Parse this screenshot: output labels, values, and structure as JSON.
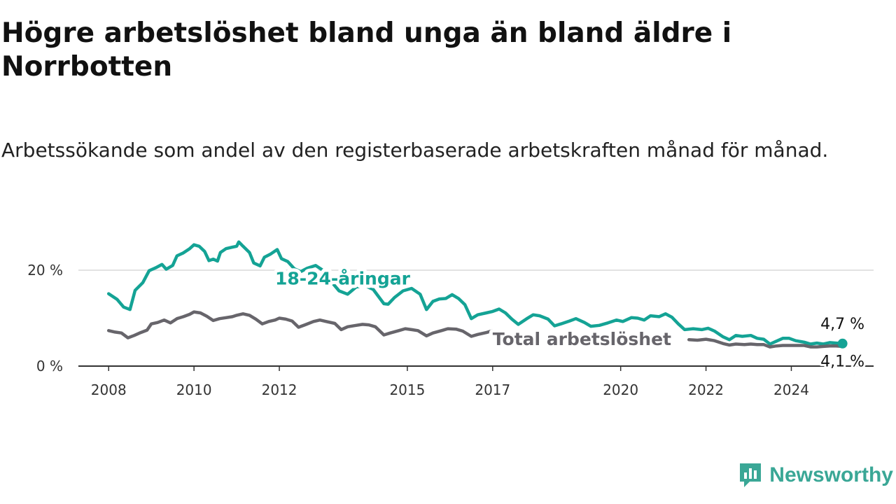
{
  "title": "Högre arbetslöshet bland unga än bland äldre i Norrbotten",
  "subtitle": "Arbetssökande som andel av den registerbaserade arbetskraften månad för månad.",
  "brand": {
    "name": "Newsworthy",
    "color": "#3aa796"
  },
  "chart_data": {
    "type": "line",
    "title": "Högre arbetslöshet bland unga än bland äldre i Norrbotten",
    "subtitle": "Arbetssökande som andel av den registerbaserade arbetskraften månad för månad.",
    "x_unit": "year",
    "xlim": [
      2007.75,
      2025.6
    ],
    "ylim": [
      0,
      30
    ],
    "y_ticks": [
      {
        "value": 0,
        "label": "0 %"
      },
      {
        "value": 20,
        "label": "20 %"
      }
    ],
    "x_ticks": [
      {
        "value": 2008,
        "label": "2008"
      },
      {
        "value": 2010,
        "label": "2010"
      },
      {
        "value": 2012,
        "label": "2012"
      },
      {
        "value": 2015,
        "label": "2015"
      },
      {
        "value": 2017,
        "label": "2017"
      },
      {
        "value": 2020,
        "label": "2020"
      },
      {
        "value": 2022,
        "label": "2022"
      },
      {
        "value": 2024,
        "label": "2024"
      }
    ],
    "grid": "horizontal",
    "series": [
      {
        "name": "18-24-åringar",
        "color": "#14a395",
        "label_pos": [
          2011.9,
          18.3
        ],
        "end_label": "4,7 %",
        "points": [
          [
            2008.0,
            15.1
          ],
          [
            2008.2,
            13.9
          ],
          [
            2008.35,
            12.3
          ],
          [
            2008.5,
            11.8
          ],
          [
            2008.62,
            15.8
          ],
          [
            2008.8,
            17.4
          ],
          [
            2008.95,
            19.9
          ],
          [
            2009.1,
            20.5
          ],
          [
            2009.25,
            21.2
          ],
          [
            2009.35,
            20.2
          ],
          [
            2009.5,
            21.0
          ],
          [
            2009.6,
            23.0
          ],
          [
            2009.75,
            23.6
          ],
          [
            2009.9,
            24.5
          ],
          [
            2010.0,
            25.3
          ],
          [
            2010.12,
            25.0
          ],
          [
            2010.25,
            23.9
          ],
          [
            2010.35,
            22.0
          ],
          [
            2010.45,
            22.3
          ],
          [
            2010.55,
            21.9
          ],
          [
            2010.62,
            23.7
          ],
          [
            2010.75,
            24.5
          ],
          [
            2010.9,
            24.8
          ],
          [
            2011.0,
            25.0
          ],
          [
            2011.05,
            25.9
          ],
          [
            2011.15,
            25.0
          ],
          [
            2011.3,
            23.7
          ],
          [
            2011.4,
            21.5
          ],
          [
            2011.55,
            20.9
          ],
          [
            2011.65,
            22.7
          ],
          [
            2011.8,
            23.4
          ],
          [
            2011.95,
            24.3
          ],
          [
            2012.05,
            22.4
          ],
          [
            2012.2,
            21.8
          ],
          [
            2012.35,
            20.3
          ],
          [
            2012.5,
            19.7
          ],
          [
            2012.65,
            20.4
          ],
          [
            2012.85,
            21.0
          ],
          [
            2013.0,
            20.1
          ],
          [
            2013.2,
            17.8
          ],
          [
            2013.4,
            15.7
          ],
          [
            2013.6,
            15.0
          ],
          [
            2013.8,
            16.5
          ],
          [
            2014.0,
            16.8
          ],
          [
            2014.2,
            16.0
          ],
          [
            2014.45,
            13.0
          ],
          [
            2014.55,
            12.9
          ],
          [
            2014.7,
            14.3
          ],
          [
            2014.9,
            15.7
          ],
          [
            2015.1,
            16.2
          ],
          [
            2015.3,
            15.0
          ],
          [
            2015.45,
            11.8
          ],
          [
            2015.6,
            13.5
          ],
          [
            2015.75,
            14.0
          ],
          [
            2015.9,
            14.1
          ],
          [
            2016.05,
            14.9
          ],
          [
            2016.2,
            14.1
          ],
          [
            2016.35,
            12.8
          ],
          [
            2016.5,
            9.9
          ],
          [
            2016.65,
            10.7
          ],
          [
            2016.85,
            11.1
          ],
          [
            2017.0,
            11.4
          ],
          [
            2017.15,
            11.9
          ],
          [
            2017.3,
            11.1
          ],
          [
            2017.45,
            9.8
          ],
          [
            2017.6,
            8.7
          ],
          [
            2017.8,
            9.9
          ],
          [
            2017.95,
            10.7
          ],
          [
            2018.1,
            10.5
          ],
          [
            2018.3,
            9.8
          ],
          [
            2018.45,
            8.4
          ],
          [
            2018.6,
            8.8
          ],
          [
            2018.8,
            9.4
          ],
          [
            2018.95,
            9.9
          ],
          [
            2019.15,
            9.1
          ],
          [
            2019.3,
            8.3
          ],
          [
            2019.5,
            8.5
          ],
          [
            2019.7,
            9.0
          ],
          [
            2019.9,
            9.6
          ],
          [
            2020.05,
            9.3
          ],
          [
            2020.25,
            10.1
          ],
          [
            2020.4,
            10.0
          ],
          [
            2020.55,
            9.6
          ],
          [
            2020.7,
            10.5
          ],
          [
            2020.9,
            10.3
          ],
          [
            2021.05,
            10.9
          ],
          [
            2021.2,
            10.2
          ],
          [
            2021.35,
            8.8
          ],
          [
            2021.5,
            7.6
          ],
          [
            2021.7,
            7.8
          ],
          [
            2021.9,
            7.6
          ],
          [
            2022.05,
            7.9
          ],
          [
            2022.2,
            7.3
          ],
          [
            2022.4,
            6.1
          ],
          [
            2022.55,
            5.5
          ],
          [
            2022.7,
            6.4
          ],
          [
            2022.85,
            6.2
          ],
          [
            2023.05,
            6.4
          ],
          [
            2023.2,
            5.8
          ],
          [
            2023.35,
            5.6
          ],
          [
            2023.5,
            4.6
          ],
          [
            2023.65,
            5.2
          ],
          [
            2023.8,
            5.8
          ],
          [
            2023.95,
            5.8
          ],
          [
            2024.1,
            5.3
          ],
          [
            2024.3,
            5.0
          ],
          [
            2024.45,
            4.6
          ],
          [
            2024.6,
            4.8
          ],
          [
            2024.75,
            4.6
          ],
          [
            2024.9,
            4.9
          ],
          [
            2025.05,
            4.8
          ],
          [
            2025.2,
            4.7
          ]
        ]
      },
      {
        "name": "Total arbetslöshet",
        "color": "#67656b",
        "label_pos": [
          2017.0,
          5.7
        ],
        "end_label": "4,1 %",
        "points": [
          [
            2008.0,
            7.4
          ],
          [
            2008.15,
            7.1
          ],
          [
            2008.3,
            6.9
          ],
          [
            2008.45,
            5.9
          ],
          [
            2008.6,
            6.4
          ],
          [
            2008.75,
            7.0
          ],
          [
            2008.9,
            7.5
          ],
          [
            2009.0,
            8.8
          ],
          [
            2009.15,
            9.1
          ],
          [
            2009.3,
            9.6
          ],
          [
            2009.45,
            9.0
          ],
          [
            2009.6,
            9.9
          ],
          [
            2009.75,
            10.3
          ],
          [
            2009.9,
            10.8
          ],
          [
            2010.0,
            11.3
          ],
          [
            2010.15,
            11.1
          ],
          [
            2010.3,
            10.4
          ],
          [
            2010.45,
            9.5
          ],
          [
            2010.6,
            9.9
          ],
          [
            2010.75,
            10.1
          ],
          [
            2010.9,
            10.3
          ],
          [
            2011.0,
            10.6
          ],
          [
            2011.15,
            10.9
          ],
          [
            2011.3,
            10.6
          ],
          [
            2011.45,
            9.8
          ],
          [
            2011.6,
            8.8
          ],
          [
            2011.75,
            9.3
          ],
          [
            2011.9,
            9.6
          ],
          [
            2012.0,
            10.0
          ],
          [
            2012.15,
            9.8
          ],
          [
            2012.3,
            9.4
          ],
          [
            2012.45,
            8.1
          ],
          [
            2012.6,
            8.6
          ],
          [
            2012.8,
            9.3
          ],
          [
            2012.95,
            9.6
          ],
          [
            2013.1,
            9.3
          ],
          [
            2013.3,
            8.9
          ],
          [
            2013.45,
            7.6
          ],
          [
            2013.6,
            8.2
          ],
          [
            2013.8,
            8.5
          ],
          [
            2013.95,
            8.7
          ],
          [
            2014.1,
            8.6
          ],
          [
            2014.25,
            8.2
          ],
          [
            2014.45,
            6.5
          ],
          [
            2014.6,
            6.9
          ],
          [
            2014.8,
            7.4
          ],
          [
            2014.95,
            7.8
          ],
          [
            2015.1,
            7.6
          ],
          [
            2015.25,
            7.4
          ],
          [
            2015.45,
            6.3
          ],
          [
            2015.6,
            6.9
          ],
          [
            2015.8,
            7.4
          ],
          [
            2015.95,
            7.8
          ],
          [
            2016.15,
            7.7
          ],
          [
            2016.3,
            7.3
          ],
          [
            2016.5,
            6.2
          ],
          [
            2016.65,
            6.6
          ],
          [
            2016.85,
            7.0
          ],
          [
            2017.0,
            7.4
          ]
        ]
      },
      {
        "name": "Total arbetslöshet (slut)",
        "color": "#67656b",
        "points": [
          [
            2021.6,
            5.5
          ],
          [
            2021.8,
            5.4
          ],
          [
            2022.0,
            5.6
          ],
          [
            2022.2,
            5.3
          ],
          [
            2022.4,
            4.7
          ],
          [
            2022.55,
            4.4
          ],
          [
            2022.7,
            4.6
          ],
          [
            2022.9,
            4.5
          ],
          [
            2023.05,
            4.6
          ],
          [
            2023.2,
            4.5
          ],
          [
            2023.35,
            4.5
          ],
          [
            2023.5,
            4.0
          ],
          [
            2023.65,
            4.2
          ],
          [
            2023.8,
            4.3
          ],
          [
            2024.0,
            4.3
          ],
          [
            2024.15,
            4.3
          ],
          [
            2024.3,
            4.3
          ],
          [
            2024.45,
            4.0
          ],
          [
            2024.6,
            4.0
          ],
          [
            2024.75,
            4.1
          ],
          [
            2024.9,
            4.2
          ],
          [
            2025.05,
            4.2
          ],
          [
            2025.2,
            4.1
          ]
        ]
      }
    ]
  }
}
